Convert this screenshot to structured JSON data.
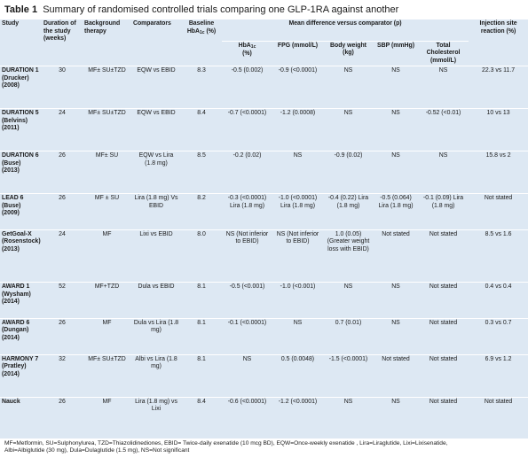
{
  "caption": {
    "label": "Table 1",
    "title": "Summary of randomised controlled trials comparing one GLP-1RA against another"
  },
  "header": {
    "study": "Study",
    "duration": "Duration of the study (weeks)",
    "background": "Background therapy",
    "comparators": "Comparators",
    "baseline_main": "Baseline HbA",
    "baseline_sub": "1c",
    "baseline_unit": " (%)",
    "mean_diff": "Mean difference versus comparator (p)",
    "injection": "Injection site reaction (%)",
    "hba1c_main": "HbA",
    "hba1c_sub": "1c",
    "hba1c_unit": "(%)",
    "fpg": "FPG (mmol/L)",
    "body_weight": "Body weight (kg)",
    "sbp": "SBP (mmHg)",
    "total_chol": "Total Cholesterol (mmol/L)"
  },
  "rows": [
    {
      "study": "DURATION 1 (Drucker) (2008)",
      "duration": "30",
      "background": "MF± SU±TZD",
      "comparators": "EQW vs EBID",
      "baseline": "8.3",
      "hba1c": "-0.5 (0.002)",
      "fpg": "-0.9 (<0.0001)",
      "body_weight": "NS",
      "sbp": "NS",
      "total_chol": "NS",
      "injection": "22.3 vs 11.7"
    },
    {
      "study": "DURATION 5 (Belvins) (2011)",
      "duration": "24",
      "background": "MF± SU±TZD",
      "comparators": "EQW vs EBID",
      "baseline": "8.4",
      "hba1c": "-0.7 (<0.0001)",
      "fpg": "-1.2 (0.0008)",
      "body_weight": "NS",
      "sbp": "NS",
      "total_chol": "-0.52 (<0.01)",
      "injection": "10 vs 13"
    },
    {
      "study": "DURATION 6 (Buse) (2013)",
      "duration": "26",
      "background": "MF± SU",
      "comparators": "EQW vs Lira (1.8 mg)",
      "baseline": "8.5",
      "hba1c": "-0.2 (0.02)",
      "fpg": "NS",
      "body_weight": "-0.9 (0.02)",
      "sbp": "NS",
      "total_chol": "NS",
      "injection": "15.8 vs 2"
    },
    {
      "study": "LEAD 6 (Buse) (2009)",
      "duration": "26",
      "background": "MF ± SU",
      "comparators": "Lira (1.8 mg) Vs EBID",
      "baseline": "8.2",
      "hba1c": "-0.3 (<0.0001) Lira (1.8 mg)",
      "fpg": "-1.0 (<0.0001) Lira (1.8 mg)",
      "body_weight": "-0.4 (0.22) Lira (1.8 mg)",
      "sbp": "-0.5 (0.064) Lira (1.8 mg)",
      "total_chol": "-0.1 (0.09) Lira (1.8 mg)",
      "injection": "Not stated"
    },
    {
      "study": "GetGoal-X (Rosenstock) (2013)",
      "duration": "24",
      "background": "MF",
      "comparators": "Lixi vs EBID",
      "baseline": "8.0",
      "hba1c": "NS (Not inferior to EBID)",
      "fpg": "NS (Not inferior to EBID)",
      "body_weight": "1.0 (0.05) (Greater weight loss with EBID)",
      "sbp": "Not stated",
      "total_chol": "Not stated",
      "injection": "8.5 vs 1.6"
    },
    {
      "study": "AWARD 1 (Wysham) (2014)",
      "duration": "52",
      "background": "MF+TZD",
      "comparators": "Dula vs EBID",
      "baseline": "8.1",
      "hba1c": "-0.5 (<0.001)",
      "fpg": "-1.0 (<0.001)",
      "body_weight": "NS",
      "sbp": "NS",
      "total_chol": "Not stated",
      "injection": "0.4 vs 0.4"
    },
    {
      "study": "AWARD 6 (Dungan) (2014)",
      "duration": "26",
      "background": "MF",
      "comparators": "Dula vs Lira (1.8 mg)",
      "baseline": "8.1",
      "hba1c": "-0.1 (<0.0001)",
      "fpg": "NS",
      "body_weight": "0.7 (0.01)",
      "sbp": "NS",
      "total_chol": "Not stated",
      "injection": "0.3 vs 0.7"
    },
    {
      "study": "HARMONY 7 (Pratley) (2014)",
      "duration": "32",
      "background": "MF± SU±TZD",
      "comparators": "Albi vs Lira (1.8 mg)",
      "baseline": "8.1",
      "hba1c": "NS",
      "fpg": "0.5 (0.0048)",
      "body_weight": "-1.5 (<0.0001)",
      "sbp": "Not stated",
      "total_chol": "Not stated",
      "injection": "6.9 vs 1.2"
    },
    {
      "study": "Nauck",
      "duration": "26",
      "background": "MF",
      "comparators": "Lira (1.8 mg) vs Lixi",
      "baseline": "8.4",
      "hba1c": "-0.6 (<0.0001)",
      "fpg": "-1.2 (<0.0001)",
      "body_weight": "NS",
      "sbp": "NS",
      "total_chol": "Not stated",
      "injection": "Not stated"
    }
  ],
  "footnote": {
    "line1": "MF=Metformin, SU=Sulphonylurea, TZD=Thiazolidinediones, EBID= Twice-daily exenatide (10 mcg BD), EQW=Once-weekly exenatide , Lira=Liraglutide, Lixi=Lixisenatide,",
    "line2": "Albi=Albiglutide (30 mg), Dula=Dulaglutide (1.5 mg), NS=Not significant"
  }
}
